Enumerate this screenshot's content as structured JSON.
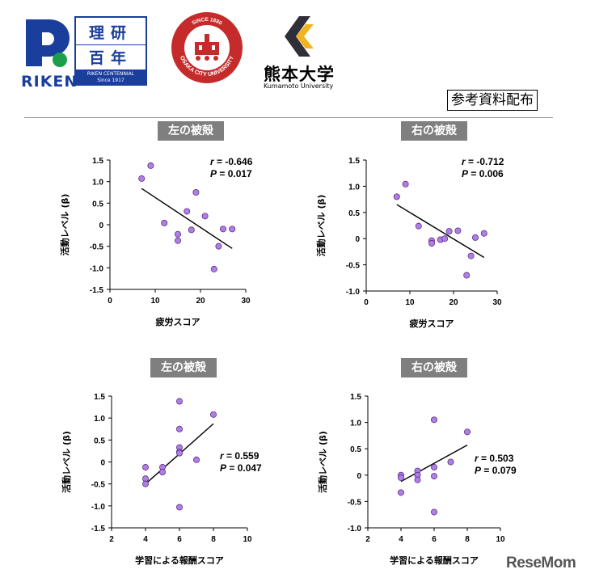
{
  "header": {
    "riken": {
      "wordmark": "RIKEN",
      "centennial_top": "理研",
      "centennial_bottom": "百年",
      "centennial_en": "RIKEN CENTENNIAL",
      "since": "Since 1917"
    },
    "osaka": {
      "ring_text": "OSAKA CITY UNIVERSITY",
      "since": "SINCE 1880"
    },
    "kumamoto": {
      "name_jp": "熊本大学",
      "name_en": "Kumamoto University"
    },
    "reference_label": "参考資料配布"
  },
  "watermark": "ReseMom",
  "colors": {
    "point_fill": "#b07fe3",
    "point_stroke": "#5b2e8a",
    "title_bg": "#7f7f7f",
    "riken_blue": "#1a3e9b",
    "riken_green": "#1aa04a",
    "osaka_red": "#c52b2b",
    "kuma_gold": "#f2b320",
    "kuma_dark": "#2f2f3a"
  },
  "chart_data": [
    {
      "id": "left-fatigue",
      "type": "scatter",
      "title": "左の被殻",
      "xlabel": "疲労スコア",
      "ylabel": "活動レベル (β)",
      "xlim": [
        0,
        30
      ],
      "ylim": [
        -1.5,
        1.5
      ],
      "xticks": [
        "0",
        "10",
        "20",
        "30"
      ],
      "yticks": [
        "1.5",
        "1.0",
        "0.5",
        "0",
        "-0.5",
        "-1.0",
        "-1.5"
      ],
      "stat_r_label": "r",
      "stat_r_value": " = -0.646",
      "stat_p_label": "P",
      "stat_p_value": " = 0.017",
      "x": [
        7,
        9,
        12,
        15,
        15,
        17,
        18,
        19,
        21,
        23,
        24,
        25,
        27
      ],
      "y": [
        1.07,
        1.37,
        0.04,
        -0.22,
        -0.37,
        0.31,
        -0.12,
        0.75,
        0.2,
        -1.03,
        -0.5,
        -0.1,
        -0.1
      ],
      "fit": {
        "x": [
          7,
          27
        ],
        "y": [
          0.84,
          -0.55
        ]
      }
    },
    {
      "id": "right-fatigue",
      "type": "scatter",
      "title": "右の被殻",
      "xlabel": "疲労スコア",
      "ylabel": "活動レベル (β)",
      "xlim": [
        0,
        30
      ],
      "ylim": [
        -1.0,
        1.5
      ],
      "xticks": [
        "0",
        "10",
        "20",
        "30"
      ],
      "yticks": [
        "1.5",
        "1.0",
        "0.5",
        "0",
        "-0.5",
        "-1.0"
      ],
      "stat_r_label": "r",
      "stat_r_value": " = -0.712",
      "stat_p_label": "P",
      "stat_p_value": " = 0.006",
      "x": [
        7,
        9,
        12,
        15,
        15,
        17,
        18,
        19,
        21,
        23,
        24,
        25,
        27
      ],
      "y": [
        0.8,
        1.04,
        0.24,
        -0.04,
        -0.09,
        -0.02,
        0.0,
        0.14,
        0.15,
        -0.7,
        -0.33,
        0.02,
        0.1
      ],
      "fit": {
        "x": [
          7,
          27
        ],
        "y": [
          0.65,
          -0.36
        ]
      }
    },
    {
      "id": "left-reward",
      "type": "scatter",
      "title": "左の被殻",
      "xlabel": "学習による報酬スコア",
      "ylabel": "活動レベル (β)",
      "xlim": [
        2,
        10
      ],
      "ylim": [
        -1.5,
        1.5
      ],
      "xticks": [
        "2",
        "4",
        "6",
        "8",
        "10"
      ],
      "yticks": [
        "1.5",
        "1.0",
        "0.5",
        "0",
        "-0.5",
        "-1.0",
        "-1.5"
      ],
      "stat_r_label": "r",
      "stat_r_value": " = 0.559",
      "stat_p_label": "P",
      "stat_p_value": " = 0.047",
      "x": [
        4,
        4,
        4,
        5,
        5,
        6,
        6,
        6,
        6,
        6,
        6,
        7,
        8
      ],
      "y": [
        -0.12,
        -0.38,
        -0.5,
        -0.12,
        -0.23,
        1.38,
        0.75,
        0.33,
        0.23,
        0.2,
        -1.03,
        0.05,
        1.08
      ],
      "fit": {
        "x": [
          4,
          8
        ],
        "y": [
          -0.5,
          0.87
        ]
      }
    },
    {
      "id": "right-reward",
      "type": "scatter",
      "title": "右の被殻",
      "xlabel": "学習による報酬スコア",
      "ylabel": "活動レベル (β)",
      "xlim": [
        2,
        10
      ],
      "ylim": [
        -1.0,
        1.5
      ],
      "xticks": [
        "2",
        "4",
        "6",
        "8",
        "10"
      ],
      "yticks": [
        "1.5",
        "1.0",
        "0.5",
        "0",
        "-0.5",
        "-1.0"
      ],
      "stat_r_label": "r",
      "stat_r_value": " = 0.503",
      "stat_p_label": "P",
      "stat_p_value": " = 0.079",
      "x": [
        4,
        4,
        4,
        5,
        5,
        5,
        6,
        6,
        6,
        6,
        7,
        8
      ],
      "y": [
        0.0,
        -0.05,
        -0.33,
        0.08,
        0.0,
        -0.09,
        1.05,
        0.15,
        -0.02,
        -0.7,
        0.25,
        0.82
      ],
      "fit": {
        "x": [
          4,
          8
        ],
        "y": [
          -0.12,
          0.57
        ]
      }
    }
  ]
}
